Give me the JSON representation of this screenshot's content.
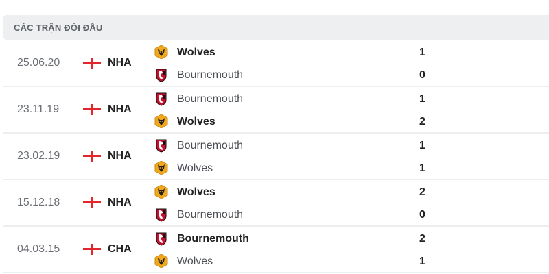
{
  "section_title": "CÁC TRẬN ĐỐI ĐẦU",
  "colors": {
    "flag_red": "#e3262b",
    "wolves_gold": "#f2a81d",
    "bournemouth_red": "#c8102e"
  },
  "matches": [
    {
      "date": "25.06.20",
      "competition": "NHA",
      "flag_icon": "england-flag-icon",
      "teams": [
        {
          "name": "Wolves",
          "logo": "wolves-logo",
          "score": "1",
          "winner": true
        },
        {
          "name": "Bournemouth",
          "logo": "bournemouth-logo",
          "score": "0",
          "winner": false
        }
      ]
    },
    {
      "date": "23.11.19",
      "competition": "NHA",
      "flag_icon": "england-flag-icon",
      "teams": [
        {
          "name": "Bournemouth",
          "logo": "bournemouth-logo",
          "score": "1",
          "winner": false
        },
        {
          "name": "Wolves",
          "logo": "wolves-logo",
          "score": "2",
          "winner": true
        }
      ]
    },
    {
      "date": "23.02.19",
      "competition": "NHA",
      "flag_icon": "england-flag-icon",
      "teams": [
        {
          "name": "Bournemouth",
          "logo": "bournemouth-logo",
          "score": "1",
          "winner": false
        },
        {
          "name": "Wolves",
          "logo": "wolves-logo",
          "score": "1",
          "winner": false
        }
      ]
    },
    {
      "date": "15.12.18",
      "competition": "NHA",
      "flag_icon": "england-flag-icon",
      "teams": [
        {
          "name": "Wolves",
          "logo": "wolves-logo",
          "score": "2",
          "winner": true
        },
        {
          "name": "Bournemouth",
          "logo": "bournemouth-logo",
          "score": "0",
          "winner": false
        }
      ]
    },
    {
      "date": "04.03.15",
      "competition": "CHA",
      "flag_icon": "england-flag-icon",
      "teams": [
        {
          "name": "Bournemouth",
          "logo": "bournemouth-logo",
          "score": "2",
          "winner": true
        },
        {
          "name": "Wolves",
          "logo": "wolves-logo",
          "score": "1",
          "winner": false
        }
      ]
    }
  ]
}
